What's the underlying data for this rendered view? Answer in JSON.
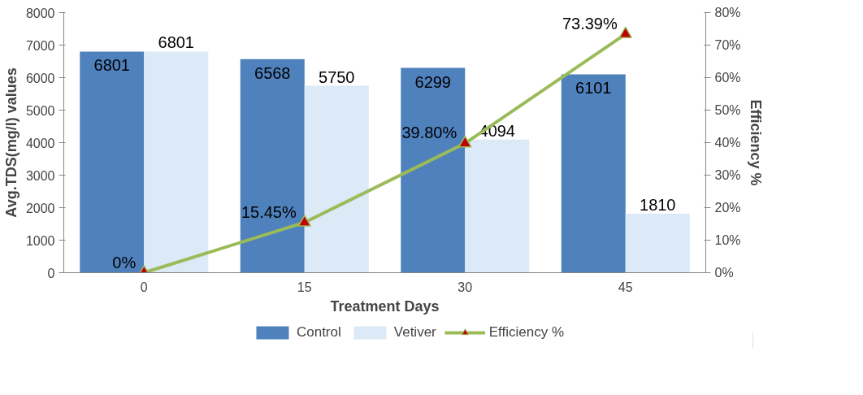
{
  "chart_data": {
    "type": "bar",
    "xlabel": "Treatment Days",
    "ylabel": "Avg.TDS(mg/l) values",
    "y2label": "Efficiency %",
    "categories": [
      "0",
      "15",
      "30",
      "45"
    ],
    "series": [
      {
        "name": "Control",
        "color": "#4f81bd",
        "values": [
          6801,
          6568,
          6299,
          6101
        ],
        "value_labels": [
          "6801",
          "6568",
          "6299",
          "6101"
        ]
      },
      {
        "name": "Vetiver",
        "color": "#dce9f6",
        "values": [
          6801,
          5750,
          4094,
          1810
        ],
        "value_labels": [
          "6801",
          "5750",
          "4094",
          "1810"
        ]
      },
      {
        "name": "Efficiency %",
        "type": "line",
        "axis": "y2",
        "color": "#9bbb59",
        "marker": "triangle",
        "values": [
          0,
          15.45,
          39.8,
          73.39
        ],
        "value_labels": [
          "0%",
          "15.45%",
          "39.80%",
          "73.39%"
        ]
      }
    ],
    "ylim": [
      0,
      8000
    ],
    "yticks": [
      0,
      1000,
      2000,
      3000,
      4000,
      5000,
      6000,
      7000,
      8000
    ],
    "y2lim": [
      0,
      80
    ],
    "y2ticks": [
      {
        "value": 0,
        "label": "0%"
      },
      {
        "value": 10,
        "label": "10%"
      },
      {
        "value": 20,
        "label": "20%"
      },
      {
        "value": 30,
        "label": "30%"
      },
      {
        "value": 40,
        "label": "40%"
      },
      {
        "value": 50,
        "label": "50%"
      },
      {
        "value": 60,
        "label": "60%"
      },
      {
        "value": 70,
        "label": "70%"
      },
      {
        "value": 80,
        "label": "80%"
      }
    ],
    "grid": false,
    "legend": "bottom"
  }
}
